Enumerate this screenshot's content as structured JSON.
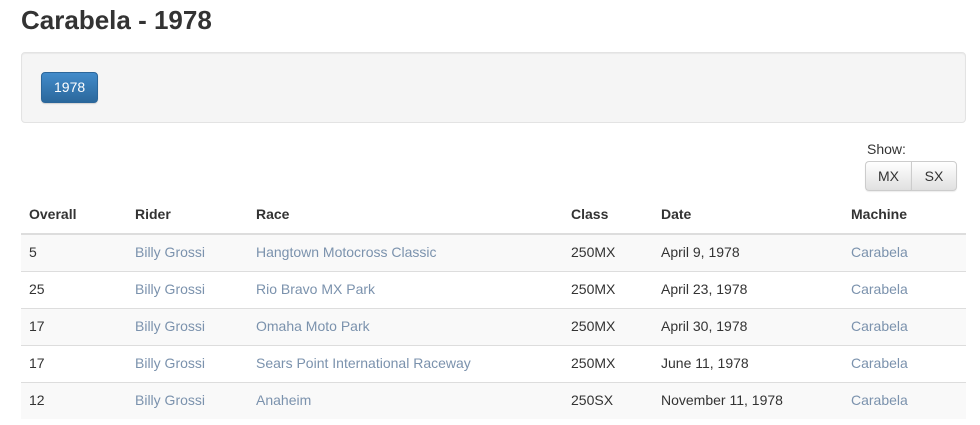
{
  "page": {
    "title": "Carabela - 1978"
  },
  "filters": {
    "year_button_label": "1978"
  },
  "show": {
    "label": "Show:",
    "options": [
      {
        "label": "MX"
      },
      {
        "label": "SX"
      }
    ]
  },
  "table": {
    "columns": [
      "Overall",
      "Rider",
      "Race",
      "Class",
      "Date",
      "Machine"
    ],
    "rows": [
      {
        "overall": "5",
        "rider": "Billy Grossi",
        "race": "Hangtown Motocross Classic",
        "class": "250MX",
        "date": "April 9, 1978",
        "machine": "Carabela"
      },
      {
        "overall": "25",
        "rider": "Billy Grossi",
        "race": "Rio Bravo MX Park",
        "class": "250MX",
        "date": "April 23, 1978",
        "machine": "Carabela"
      },
      {
        "overall": "17",
        "rider": "Billy Grossi",
        "race": "Omaha Moto Park",
        "class": "250MX",
        "date": "April 30, 1978",
        "machine": "Carabela"
      },
      {
        "overall": "17",
        "rider": "Billy Grossi",
        "race": "Sears Point International Raceway",
        "class": "250MX",
        "date": "June 11, 1978",
        "machine": "Carabela"
      },
      {
        "overall": "12",
        "rider": "Billy Grossi",
        "race": "Anaheim",
        "class": "250SX",
        "date": "November 11, 1978",
        "machine": "Carabela"
      }
    ]
  },
  "colors": {
    "primary_button": "#428bca",
    "link": "#7b92ad",
    "well_background": "#f5f5f5",
    "table_border": "#dddddd",
    "stripe_row": "#f9f9f9",
    "text": "#333333"
  }
}
